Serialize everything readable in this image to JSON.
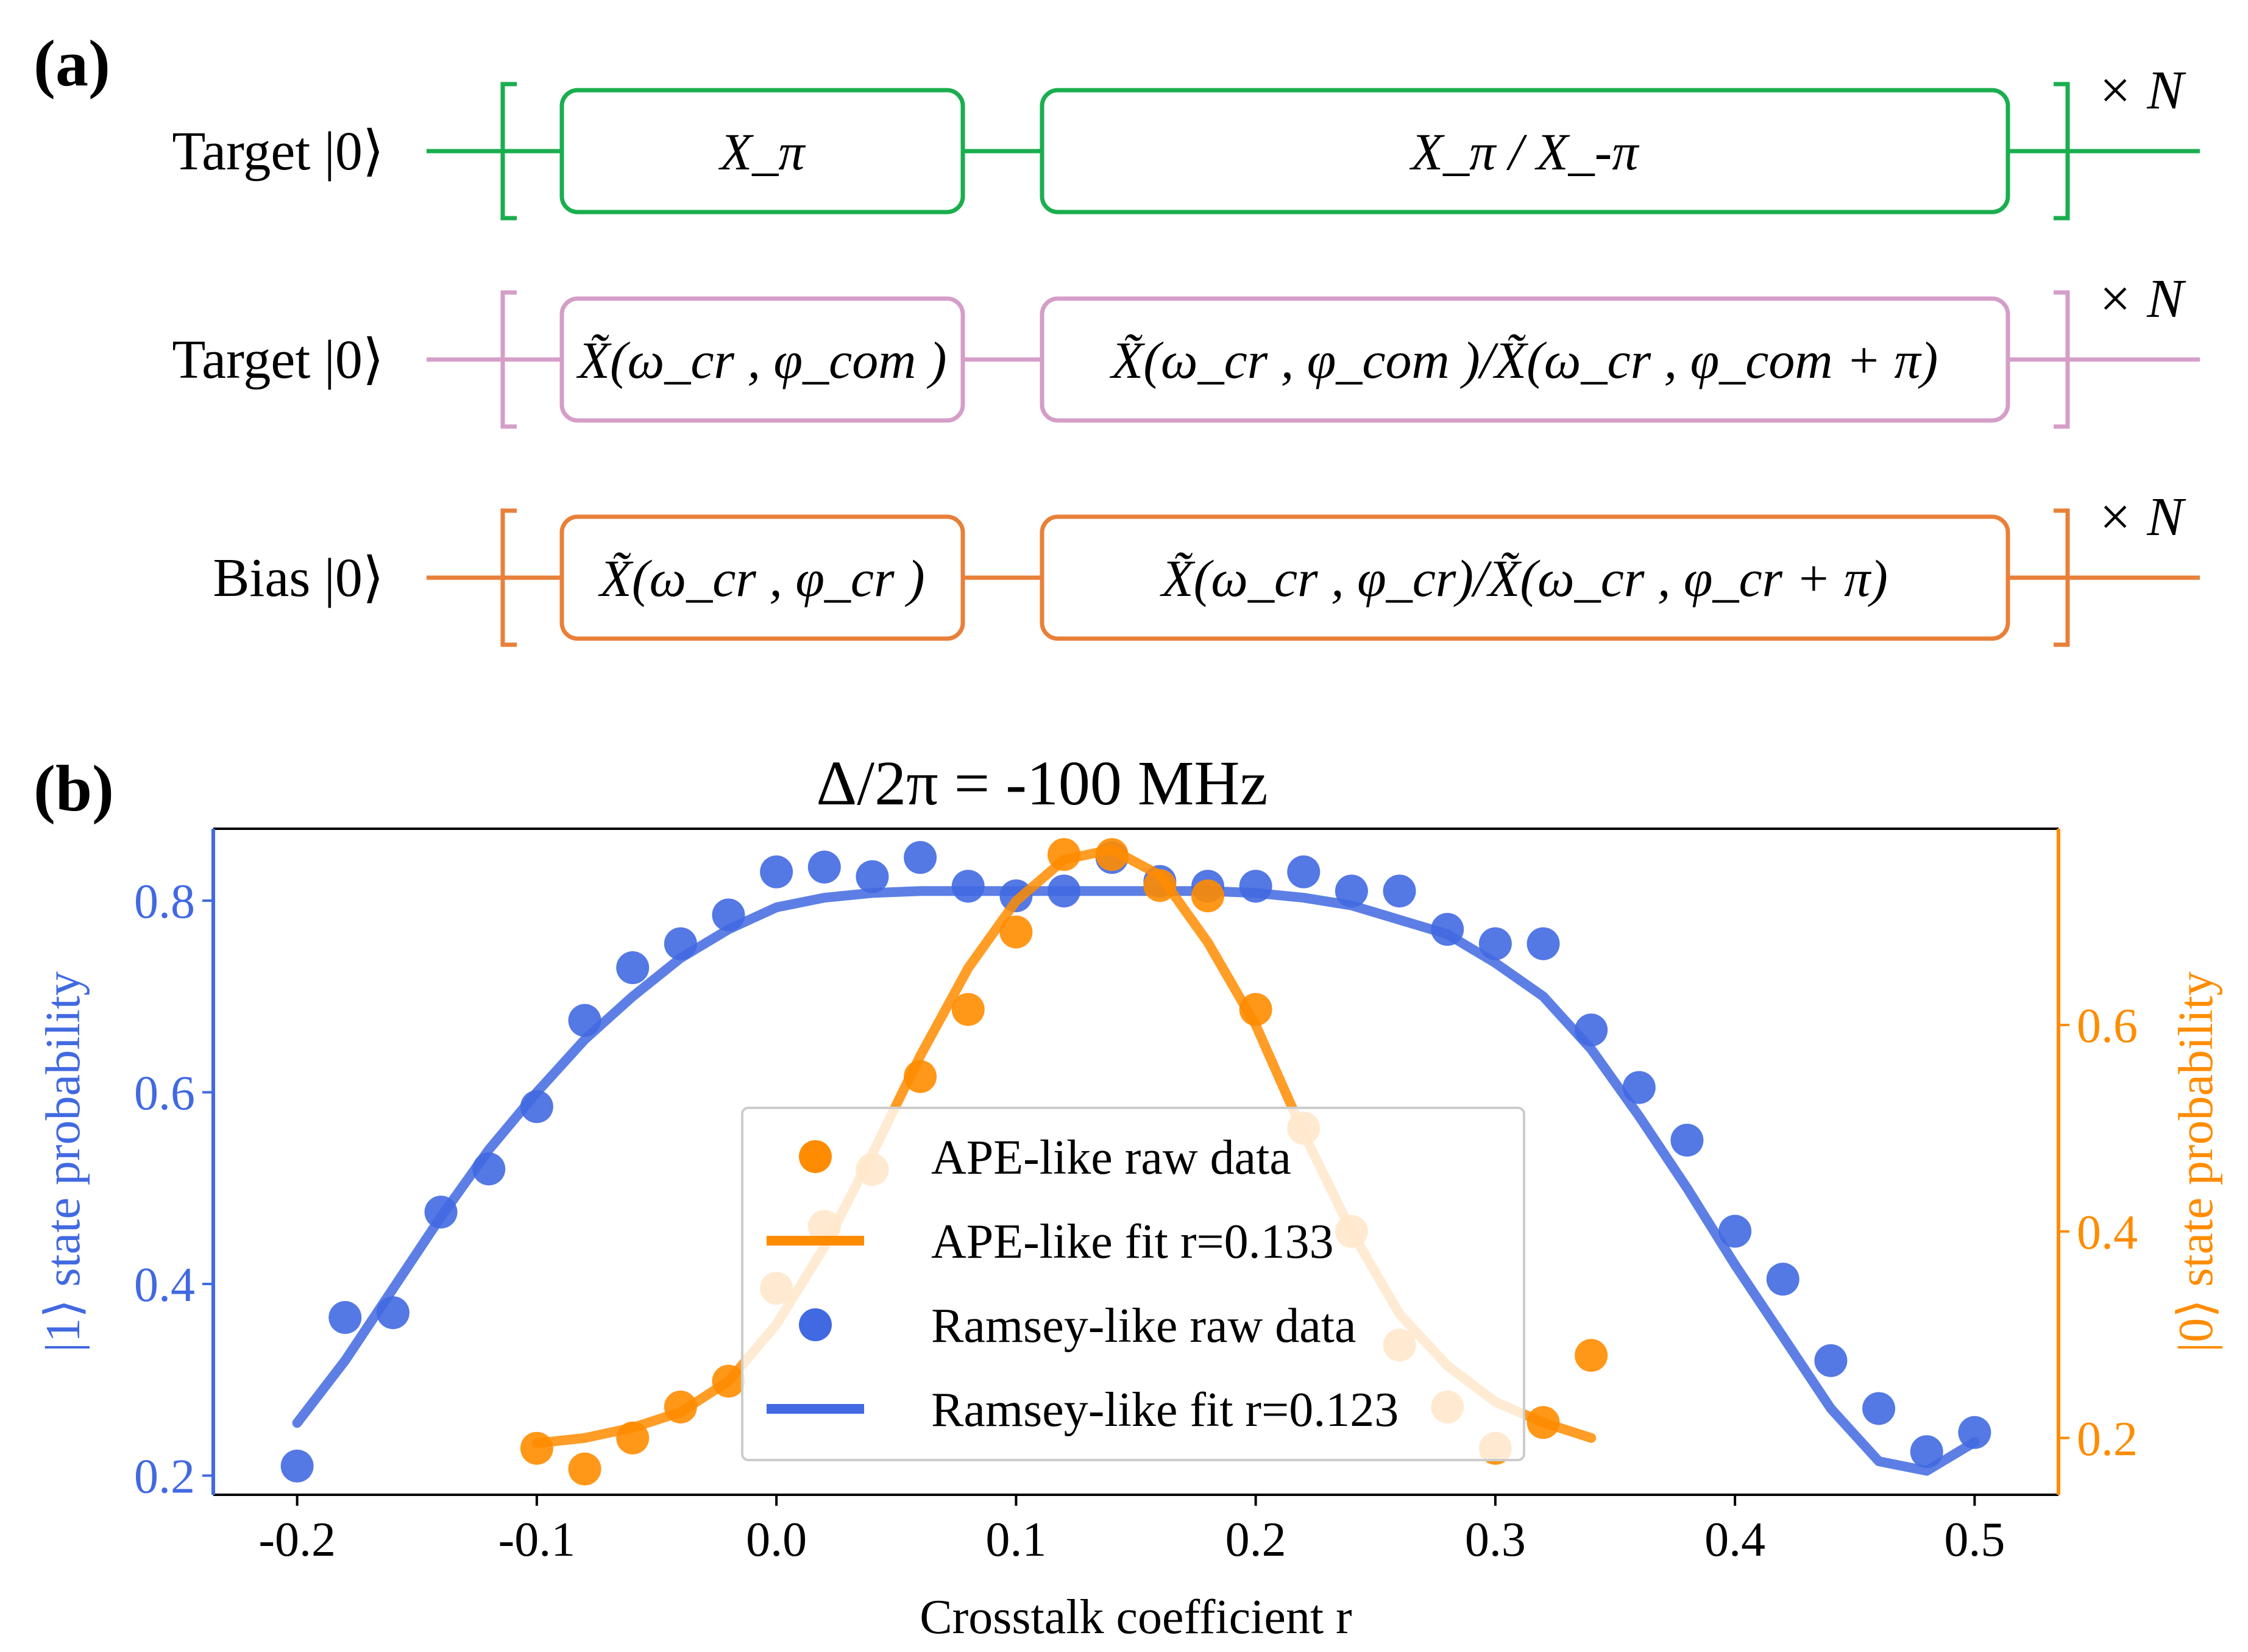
{
  "panel_a": {
    "label": "(a)",
    "rows": [
      {
        "qubit": "Target |0⟩",
        "color": "#1aae4e",
        "gate1": "X_π",
        "gate2": "X_π  /  X_-π",
        "repeat": "× N"
      },
      {
        "qubit": "Target |0⟩",
        "color": "#d49ec8",
        "gate1": "X̃(ω_cr , φ_com )",
        "gate2": "X̃(ω_cr , φ_com )/X̃(ω_cr , φ_com  + π)",
        "repeat": "× N"
      },
      {
        "qubit": "Bias  |0⟩",
        "color": "#e8803a",
        "gate1": "X̃(ω_cr , φ_cr )",
        "gate2": "X̃(ω_cr , φ_cr)/X̃(ω_cr , φ_cr  + π)",
        "repeat": "× N"
      }
    ]
  },
  "panel_b": {
    "label": "(b)"
  },
  "chart_data": {
    "type": "scatter",
    "title": "Δ/2π = -100 MHz",
    "xlabel": "Crosstalk coefficient r",
    "ylabel_left": "|1⟩ state probability",
    "ylabel_right": "|0⟩ state probability",
    "xlim": [
      -0.235,
      0.535
    ],
    "ylim_left": [
      0.18,
      0.875
    ],
    "ylim_right": [
      0.145,
      0.79
    ],
    "xticks": [
      "-0.2",
      "-0.1",
      "0.0",
      "0.1",
      "0.2",
      "0.3",
      "0.4",
      "0.5"
    ],
    "xtick_values": [
      -0.2,
      -0.1,
      0.0,
      0.1,
      0.2,
      0.3,
      0.4,
      0.5
    ],
    "yticks_left": [
      "0.2",
      "0.4",
      "0.6",
      "0.8"
    ],
    "ytick_values_left": [
      0.2,
      0.4,
      0.6,
      0.8
    ],
    "yticks_right": [
      "0.2",
      "0.4",
      "0.6"
    ],
    "ytick_values_right": [
      0.2,
      0.4,
      0.6
    ],
    "left_axis_color": "#4169e1",
    "right_axis_color": "#ff8c00",
    "legend_position": "center",
    "series": [
      {
        "name": "APE-like raw data",
        "kind": "scatter",
        "axis": "right",
        "color": "#ff8c00",
        "x": [
          -0.1,
          -0.08,
          -0.06,
          -0.04,
          -0.02,
          0.0,
          0.02,
          0.04,
          0.06,
          0.08,
          0.1,
          0.12,
          0.14,
          0.16,
          0.18,
          0.2,
          0.22,
          0.24,
          0.26,
          0.28,
          0.3,
          0.32,
          0.34
        ],
        "y": [
          0.19,
          0.17,
          0.2,
          0.23,
          0.255,
          0.345,
          0.405,
          0.46,
          0.55,
          0.615,
          0.69,
          0.765,
          0.765,
          0.735,
          0.725,
          0.615,
          0.5,
          0.4,
          0.29,
          0.23,
          0.19,
          0.215,
          0.28
        ]
      },
      {
        "name": "APE-like fit r=0.133",
        "kind": "line",
        "axis": "right",
        "color": "#ff8c00",
        "x": [
          -0.1,
          -0.08,
          -0.06,
          -0.04,
          -0.02,
          0.0,
          0.02,
          0.04,
          0.06,
          0.08,
          0.1,
          0.12,
          0.14,
          0.16,
          0.18,
          0.2,
          0.22,
          0.24,
          0.26,
          0.28,
          0.3,
          0.32,
          0.34
        ],
        "y": [
          0.195,
          0.2,
          0.21,
          0.225,
          0.255,
          0.31,
          0.385,
          0.475,
          0.57,
          0.655,
          0.72,
          0.76,
          0.77,
          0.745,
          0.68,
          0.6,
          0.495,
          0.4,
          0.32,
          0.27,
          0.235,
          0.215,
          0.2
        ]
      },
      {
        "name": "Ramsey-like raw data",
        "kind": "scatter",
        "axis": "left",
        "color": "#4169e1",
        "x": [
          -0.2,
          -0.18,
          -0.16,
          -0.14,
          -0.12,
          -0.1,
          -0.08,
          -0.06,
          -0.04,
          -0.02,
          0.0,
          0.02,
          0.04,
          0.06,
          0.08,
          0.1,
          0.12,
          0.14,
          0.16,
          0.18,
          0.2,
          0.22,
          0.24,
          0.26,
          0.28,
          0.3,
          0.32,
          0.34,
          0.36,
          0.38,
          0.4,
          0.42,
          0.44,
          0.46,
          0.48,
          0.5
        ],
        "y": [
          0.21,
          0.365,
          0.37,
          0.475,
          0.52,
          0.585,
          0.675,
          0.73,
          0.755,
          0.785,
          0.83,
          0.835,
          0.825,
          0.845,
          0.815,
          0.805,
          0.81,
          0.845,
          0.82,
          0.815,
          0.815,
          0.83,
          0.81,
          0.81,
          0.77,
          0.755,
          0.755,
          0.665,
          0.605,
          0.55,
          0.455,
          0.405,
          0.32,
          0.27,
          0.225,
          0.245
        ]
      },
      {
        "name": "Ramsey-like fit r=0.123",
        "kind": "line",
        "axis": "left",
        "color": "#4169e1",
        "x": [
          -0.2,
          -0.18,
          -0.16,
          -0.14,
          -0.12,
          -0.1,
          -0.08,
          -0.06,
          -0.04,
          -0.02,
          0.0,
          0.02,
          0.04,
          0.06,
          0.08,
          0.1,
          0.12,
          0.14,
          0.16,
          0.18,
          0.2,
          0.22,
          0.24,
          0.26,
          0.28,
          0.3,
          0.32,
          0.34,
          0.36,
          0.38,
          0.4,
          0.42,
          0.44,
          0.46,
          0.48,
          0.5
        ],
        "y": [
          0.255,
          0.32,
          0.395,
          0.47,
          0.54,
          0.6,
          0.655,
          0.7,
          0.74,
          0.77,
          0.793,
          0.803,
          0.808,
          0.81,
          0.81,
          0.81,
          0.81,
          0.81,
          0.81,
          0.81,
          0.808,
          0.803,
          0.795,
          0.78,
          0.765,
          0.735,
          0.7,
          0.645,
          0.575,
          0.5,
          0.42,
          0.345,
          0.27,
          0.215,
          0.205,
          0.235
        ]
      }
    ]
  }
}
